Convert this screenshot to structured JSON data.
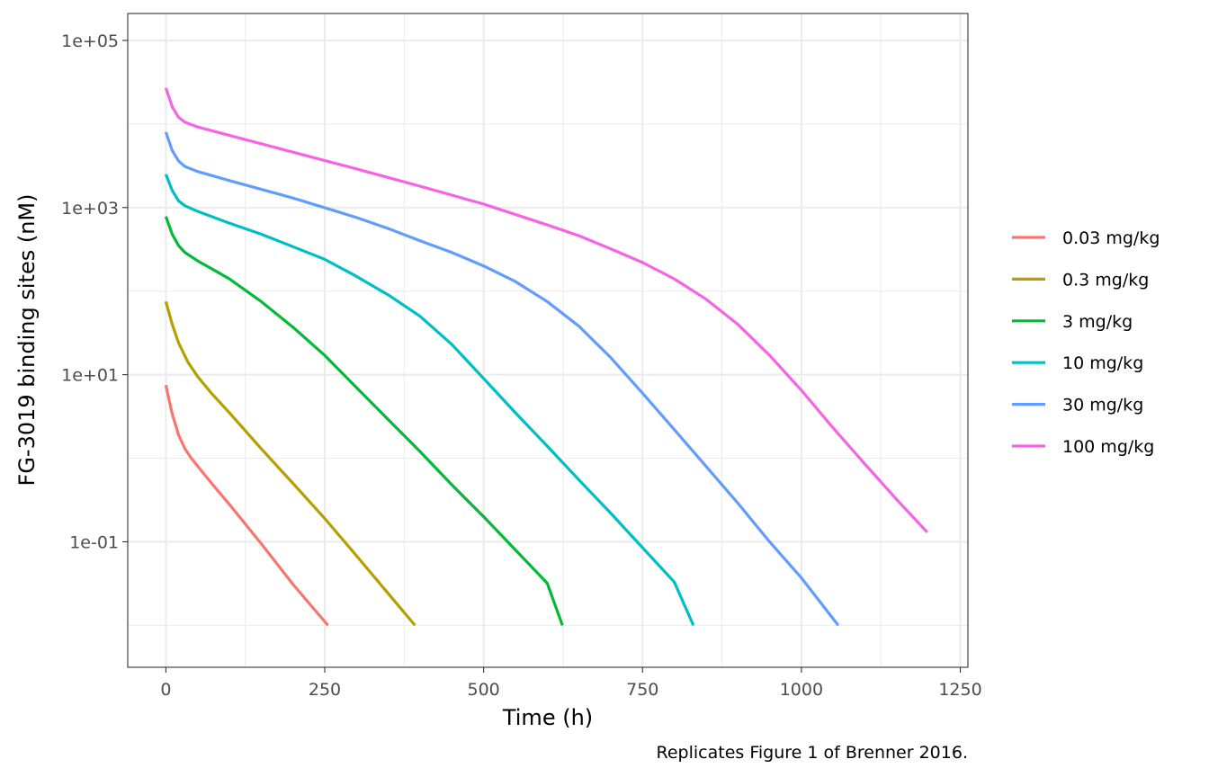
{
  "chart_data": {
    "type": "line",
    "title": "",
    "xlabel": "Time (h)",
    "ylabel": "FG-3019 binding sites (nM)",
    "caption": "Replicates Figure 1 of Brenner 2016.",
    "x_scale": "linear",
    "y_scale": "log10",
    "xlim": [
      -60,
      1262
    ],
    "ylim": [
      0.00315,
      210000
    ],
    "x_ticks": [
      0,
      250,
      500,
      750,
      1000,
      1250
    ],
    "x_tick_labels": [
      "0",
      "250",
      "500",
      "750",
      "1000",
      "1250"
    ],
    "y_ticks": [
      0.1,
      10,
      1000,
      100000
    ],
    "y_tick_labels": [
      "1e-01",
      "1e+01",
      "1e+03",
      "1e+05"
    ],
    "x_minor_ticks": [
      125,
      375,
      625,
      875,
      1125
    ],
    "y_minor_ticks": [
      0.01,
      1,
      100,
      10000
    ],
    "grid": true,
    "legend_position": "right",
    "series": [
      {
        "name": "0.03 mg/kg",
        "color": "#F8766D",
        "x": [
          0,
          5,
          10,
          20,
          30,
          40,
          55,
          75,
          100,
          150,
          200,
          255
        ],
        "y": [
          7.5,
          5.0,
          3.4,
          1.9,
          1.3,
          1.0,
          0.72,
          0.47,
          0.28,
          0.095,
          0.031,
          0.01
        ]
      },
      {
        "name": "0.3 mg/kg",
        "color": "#B79F00",
        "x": [
          0,
          10,
          20,
          35,
          50,
          70,
          100,
          150,
          200,
          250,
          300,
          350,
          392
        ],
        "y": [
          75,
          40,
          24,
          14,
          9.5,
          6.2,
          3.5,
          1.3,
          0.5,
          0.19,
          0.068,
          0.024,
          0.01
        ]
      },
      {
        "name": "3 mg/kg",
        "color": "#00BA38",
        "x": [
          0,
          10,
          20,
          30,
          50,
          75,
          100,
          150,
          200,
          250,
          300,
          350,
          400,
          450,
          500,
          550,
          600,
          624
        ],
        "y": [
          780,
          480,
          350,
          290,
          230,
          180,
          140,
          75,
          37,
          17,
          7,
          2.9,
          1.2,
          0.48,
          0.2,
          0.08,
          0.032,
          0.01
        ]
      },
      {
        "name": "10 mg/kg",
        "color": "#00BFC4",
        "x": [
          0,
          10,
          20,
          30,
          50,
          100,
          150,
          200,
          250,
          300,
          350,
          400,
          450,
          500,
          550,
          600,
          650,
          700,
          750,
          800,
          830
        ],
        "y": [
          2500,
          1600,
          1200,
          1050,
          900,
          650,
          480,
          340,
          240,
          150,
          90,
          50,
          23,
          9,
          3.5,
          1.4,
          0.55,
          0.22,
          0.085,
          0.033,
          0.01
        ]
      },
      {
        "name": "30 mg/kg",
        "color": "#619CFF",
        "x": [
          0,
          10,
          20,
          30,
          50,
          100,
          200,
          300,
          350,
          400,
          450,
          500,
          550,
          600,
          650,
          700,
          750,
          800,
          850,
          900,
          950,
          1000,
          1058
        ],
        "y": [
          8000,
          4800,
          3600,
          3100,
          2700,
          2100,
          1300,
          760,
          560,
          400,
          290,
          200,
          130,
          75,
          38,
          16,
          6,
          2.2,
          0.8,
          0.29,
          0.1,
          0.037,
          0.01
        ]
      },
      {
        "name": "100 mg/kg",
        "color": "#F564E3",
        "x": [
          0,
          10,
          20,
          30,
          50,
          100,
          200,
          300,
          400,
          500,
          600,
          650,
          700,
          750,
          800,
          850,
          900,
          950,
          1000,
          1050,
          1100,
          1150,
          1198
        ],
        "y": [
          27000,
          16000,
          12000,
          10500,
          9200,
          7300,
          4600,
          2900,
          1800,
          1100,
          620,
          460,
          320,
          220,
          140,
          80,
          40,
          17,
          6.5,
          2.3,
          0.85,
          0.32,
          0.13
        ]
      }
    ]
  }
}
